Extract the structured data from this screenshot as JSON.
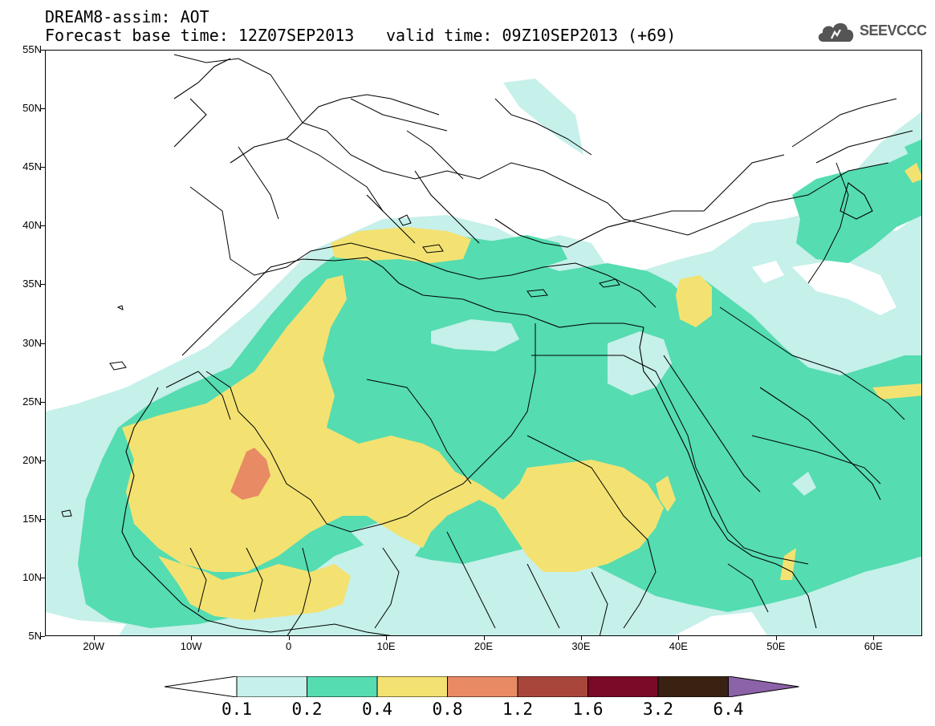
{
  "header": {
    "title": "DREAM8-assim: AOT",
    "base_time": "Forecast base time: 12Z07SEP2013",
    "valid_time": "valid time: 09Z10SEP2013 (+69)"
  },
  "logo": {
    "text": "SEEVCCC",
    "icon": "cloud-icon"
  },
  "map": {
    "projection": "lat-lon",
    "lon_range": [
      -25,
      65
    ],
    "lat_range": [
      5,
      55
    ],
    "lat_ticks": [
      {
        "value": 55,
        "label": "55N"
      },
      {
        "value": 50,
        "label": "50N"
      },
      {
        "value": 45,
        "label": "45N"
      },
      {
        "value": 40,
        "label": "40N"
      },
      {
        "value": 35,
        "label": "35N"
      },
      {
        "value": 30,
        "label": "30N"
      },
      {
        "value": 25,
        "label": "25N"
      },
      {
        "value": 20,
        "label": "20N"
      },
      {
        "value": 15,
        "label": "15N"
      },
      {
        "value": 10,
        "label": "10N"
      },
      {
        "value": 5,
        "label": "5N"
      }
    ],
    "lon_ticks": [
      {
        "value": -20,
        "label": "20W"
      },
      {
        "value": -10,
        "label": "10W"
      },
      {
        "value": 0,
        "label": "0"
      },
      {
        "value": 10,
        "label": "10E"
      },
      {
        "value": 20,
        "label": "20E"
      },
      {
        "value": 30,
        "label": "30E"
      },
      {
        "value": 40,
        "label": "40E"
      },
      {
        "value": 50,
        "label": "50E"
      },
      {
        "value": 60,
        "label": "60E"
      }
    ]
  },
  "colorbar": {
    "levels": [
      "0.1",
      "0.2",
      "0.4",
      "0.8",
      "1.2",
      "1.6",
      "3.2",
      "6.4"
    ],
    "colors": [
      "#ffffff",
      "#c6f0ea",
      "#55dcb0",
      "#f3e272",
      "#e88a64",
      "#a8463c",
      "#7a0a26",
      "#3a2212",
      "#8c62a8"
    ]
  }
}
